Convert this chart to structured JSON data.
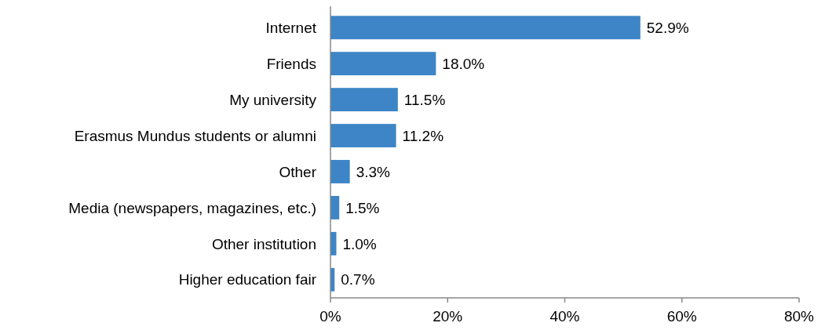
{
  "chart_data": {
    "type": "bar",
    "orientation": "horizontal",
    "categories": [
      "Internet",
      "Friends",
      "My university",
      "Erasmus Mundus students or alumni",
      "Other",
      "Media (newspapers, magazines, etc.)",
      "Other institution",
      "Higher education fair"
    ],
    "values": [
      52.9,
      18.0,
      11.5,
      11.2,
      3.3,
      1.5,
      1.0,
      0.7
    ],
    "value_labels": [
      "52.9%",
      "18.0%",
      "11.5%",
      "11.2%",
      "3.3%",
      "1.5%",
      "1.0%",
      "0.7%"
    ],
    "color": "#3d85c6",
    "xlim": [
      0,
      80
    ],
    "xticks": [
      {
        "value": 0,
        "label": "0%"
      },
      {
        "value": 20,
        "label": "20%"
      },
      {
        "value": 40,
        "label": "40%"
      },
      {
        "value": 60,
        "label": "60%"
      },
      {
        "value": 80,
        "label": "80%"
      }
    ],
    "grid": false
  }
}
